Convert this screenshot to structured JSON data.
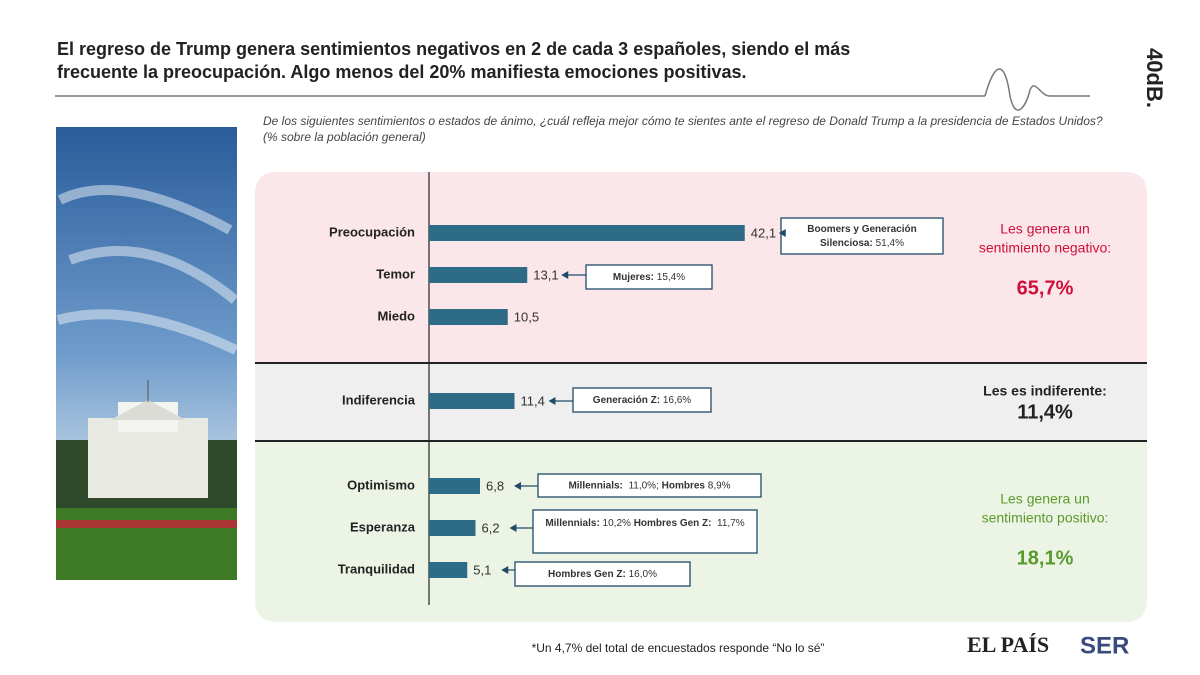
{
  "chart_data": {
    "type": "bar",
    "orientation": "horizontal",
    "title": [
      "El regreso de Trump genera sentimientos negativos en 2 de cada 3 españoles, siendo el más",
      "frecuente la preocupación. Algo menos del 20% manifiesta emociones positivas."
    ],
    "subtitle": [
      "De los siguientes sentimientos o estados de ánimo, ¿cuál refleja mejor cómo te sientes ante el regreso de Donald Trump a la presidencia de Estados Unidos?",
      "(% sobre la población general)"
    ],
    "categories": [
      "Preocupación",
      "Temor",
      "Miedo",
      "Indiferencia",
      "Optimismo",
      "Esperanza",
      "Tranquilidad"
    ],
    "values": [
      42.1,
      13.1,
      10.5,
      11.4,
      6.8,
      6.2,
      5.1
    ],
    "value_labels": [
      "42,1",
      "13,1",
      "10,5",
      "11,4",
      "6,8",
      "6,2",
      "5,1"
    ],
    "color": "#2e6b86",
    "xlim": [
      0,
      60
    ],
    "annotations": [
      [
        [
          {
            "text": "Boomers y Generación",
            "bold": true
          }
        ],
        [
          {
            "text": "Silenciosa:",
            "bold": true
          },
          {
            "text": " 51,4%",
            "bold": false
          }
        ]
      ],
      [
        [
          {
            "text": "Mujeres:",
            "bold": true
          },
          {
            "text": " 15,4%",
            "bold": false
          }
        ]
      ],
      null,
      [
        [
          {
            "text": "Generación Z:",
            "bold": true
          },
          {
            "text": " 16,6%",
            "bold": false
          }
        ]
      ],
      [
        [
          {
            "text": "Millennials:",
            "bold": true
          },
          {
            "text": "  11,0%; ",
            "bold": false
          },
          {
            "text": "Hombres",
            "bold": true
          },
          {
            "text": " 8,9%",
            "bold": false
          }
        ]
      ],
      [
        [
          {
            "text": "Millennials:",
            "bold": true
          },
          {
            "text": " 10,2% ",
            "bold": false
          },
          {
            "text": "Hombres Gen Z:",
            "bold": true
          },
          {
            "text": "  11,7%",
            "bold": false
          }
        ]
      ],
      [
        [
          {
            "text": "Hombres Gen Z:",
            "bold": true
          },
          {
            "text": " 16,0%",
            "bold": false
          }
        ]
      ]
    ],
    "groups": [
      {
        "label": [
          "Les genera un",
          "sentimiento negativo:"
        ],
        "total": "65,7%",
        "color": "#d0103a",
        "background": "#fbe6ea"
      },
      {
        "label": [
          "Les es indiferente:"
        ],
        "total": "11,4%",
        "color": "#222222",
        "background": "#efefef"
      },
      {
        "label": [
          "Les genera un",
          "sentimiento positivo:"
        ],
        "total": "18,1%",
        "color": "#5a9a2a",
        "background": "#ecf4e6"
      }
    ],
    "footnote": "*Un 4,7% del total de encuestados responde “No lo sé”",
    "logos": [
      "EL PAÍS",
      "SER",
      "40dB."
    ]
  }
}
